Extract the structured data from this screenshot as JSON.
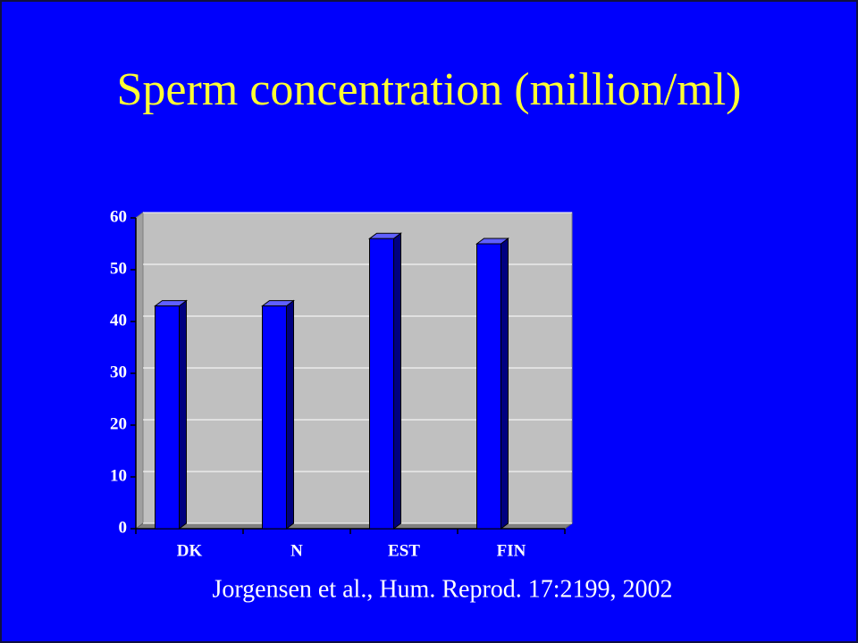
{
  "chart_data": {
    "type": "bar",
    "title": "Sperm concentration (million/ml)",
    "categories": [
      "DK",
      "N",
      "EST",
      "FIN"
    ],
    "values": [
      43,
      43,
      56,
      55
    ],
    "color": "#0000ff",
    "ylim": [
      0,
      60
    ],
    "yticks": [
      0,
      10,
      20,
      30,
      40,
      50,
      60
    ],
    "grid": true,
    "source": "Jorgensen et al., Hum. Reprod. 17:2199, 2002"
  }
}
